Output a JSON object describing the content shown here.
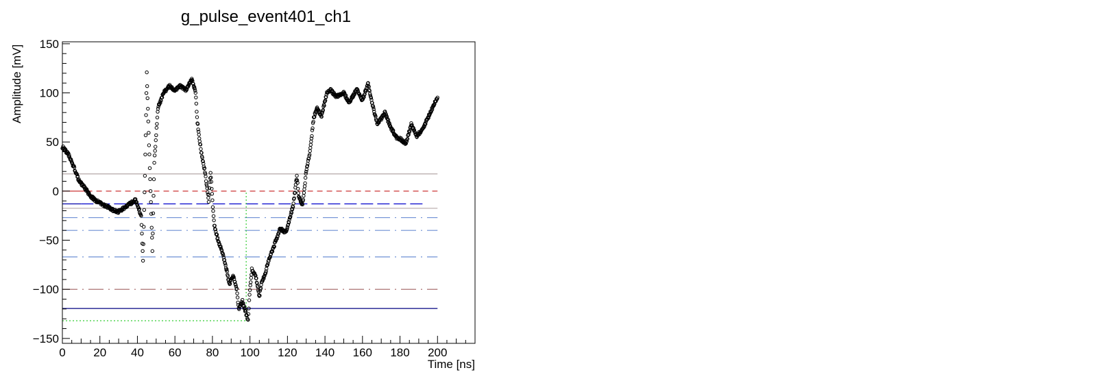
{
  "chart_data": {
    "type": "scatter",
    "title": "g_pulse_event401_ch1",
    "xlabel": "Time [ns]",
    "ylabel": "Amplitude [mV]",
    "xlim": [
      0,
      220
    ],
    "ylim": [
      -155,
      152
    ],
    "grid": false,
    "legend": "none",
    "xticks": [
      0,
      20,
      40,
      60,
      80,
      100,
      120,
      140,
      160,
      180,
      200
    ],
    "yticks": [
      -150,
      -100,
      -50,
      0,
      50,
      100,
      150
    ],
    "marker": "open-circle",
    "point_spacing_ns": 0.2,
    "waveform_anchors": [
      [
        0,
        45
      ],
      [
        3,
        38
      ],
      [
        6,
        25
      ],
      [
        9,
        10
      ],
      [
        12,
        3
      ],
      [
        15,
        -5
      ],
      [
        18,
        -10
      ],
      [
        21,
        -13
      ],
      [
        24,
        -16
      ],
      [
        27,
        -19
      ],
      [
        30,
        -21
      ],
      [
        33,
        -17
      ],
      [
        36,
        -13
      ],
      [
        39,
        -9
      ],
      [
        42,
        -25
      ],
      [
        43,
        -70
      ],
      [
        44,
        15
      ],
      [
        45,
        120
      ],
      [
        46,
        60
      ],
      [
        47,
        0
      ],
      [
        48,
        -60
      ],
      [
        49,
        30
      ],
      [
        51,
        85
      ],
      [
        54,
        100
      ],
      [
        57,
        107
      ],
      [
        60,
        103
      ],
      [
        63,
        107
      ],
      [
        66,
        103
      ],
      [
        69,
        115
      ],
      [
        71,
        100
      ],
      [
        72,
        70
      ],
      [
        74,
        40
      ],
      [
        76,
        20
      ],
      [
        78,
        -10
      ],
      [
        79,
        20
      ],
      [
        80,
        -10
      ],
      [
        81,
        -35
      ],
      [
        83,
        -50
      ],
      [
        85,
        -60
      ],
      [
        87,
        -75
      ],
      [
        89,
        -95
      ],
      [
        91,
        -85
      ],
      [
        93,
        -100
      ],
      [
        94,
        -120
      ],
      [
        96,
        -112
      ],
      [
        98,
        -125
      ],
      [
        99,
        -131
      ],
      [
        100,
        -100
      ],
      [
        101,
        -80
      ],
      [
        103,
        -85
      ],
      [
        105,
        -108
      ],
      [
        106,
        -95
      ],
      [
        108,
        -85
      ],
      [
        110,
        -70
      ],
      [
        113,
        -55
      ],
      [
        116,
        -38
      ],
      [
        119,
        -42
      ],
      [
        121,
        -30
      ],
      [
        123,
        -15
      ],
      [
        125,
        15
      ],
      [
        126,
        -5
      ],
      [
        128,
        -15
      ],
      [
        130,
        20
      ],
      [
        132,
        40
      ],
      [
        134,
        75
      ],
      [
        136,
        85
      ],
      [
        138,
        75
      ],
      [
        141,
        100
      ],
      [
        143,
        103
      ],
      [
        146,
        96
      ],
      [
        150,
        100
      ],
      [
        153,
        90
      ],
      [
        157,
        104
      ],
      [
        160,
        92
      ],
      [
        163,
        110
      ],
      [
        165,
        90
      ],
      [
        168,
        68
      ],
      [
        172,
        80
      ],
      [
        175,
        65
      ],
      [
        178,
        55
      ],
      [
        181,
        52
      ],
      [
        183,
        48
      ],
      [
        186,
        68
      ],
      [
        189,
        56
      ],
      [
        192,
        63
      ],
      [
        195,
        75
      ],
      [
        198,
        88
      ],
      [
        200,
        95
      ]
    ],
    "reference_lines": [
      {
        "y": 17.5,
        "color": "#b4a7a7",
        "style": "solid",
        "x_range": [
          0,
          200
        ]
      },
      {
        "y": 0,
        "color": "#cc3333",
        "style": "solid",
        "x_range": [
          0,
          13
        ]
      },
      {
        "y": 0,
        "color": "#cc3333",
        "style": "dashed",
        "x_range": [
          13,
          200
        ]
      },
      {
        "y": -13,
        "color": "#0000aa",
        "style": "solid",
        "x_range": [
          0,
          10
        ]
      },
      {
        "y": -13,
        "color": "#0000cc",
        "style": "long-dash",
        "x_range": [
          10,
          192
        ]
      },
      {
        "y": -17.5,
        "color": "#b4a7a7",
        "style": "solid",
        "x_range": [
          0,
          200
        ]
      },
      {
        "y": -27,
        "color": "#6d8fd4",
        "style": "long-dash-dot",
        "x_range": [
          0,
          200
        ]
      },
      {
        "y": -40,
        "color": "#6d8fd4",
        "style": "long-dash-dot",
        "x_range": [
          0,
          200
        ]
      },
      {
        "y": -67,
        "color": "#6d8fd4",
        "style": "long-dash-dot",
        "x_range": [
          0,
          200
        ]
      },
      {
        "y": -100,
        "color": "#a06060",
        "style": "long-dash-dot",
        "x_range": [
          0,
          200
        ]
      },
      {
        "y": -119.5,
        "color": "#000080",
        "style": "solid",
        "x_range": [
          0,
          200
        ]
      },
      {
        "y": -132,
        "color": "#33cc33",
        "style": "dotted",
        "x_range": [
          0,
          98
        ]
      }
    ],
    "marker_vline": {
      "x": 98,
      "y_range": [
        -132,
        0
      ],
      "color": "#33cc33",
      "style": "dotted"
    }
  }
}
